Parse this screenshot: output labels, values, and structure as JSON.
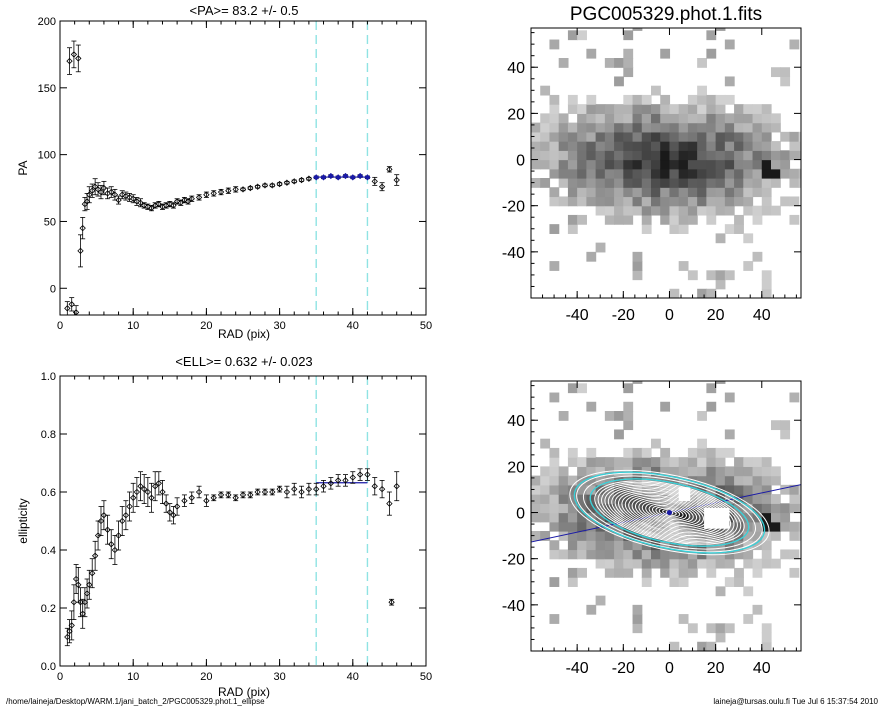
{
  "footer": {
    "path": "/home/laineja/Desktop/WARM.1/jani_batch_2/PGC005329.phot.1_ellipse",
    "stamp": "laineja@tursas.oulu.fi  Tue Jul  6 15:37:54 2010"
  },
  "colors": {
    "axis": "#000000",
    "data": "#000000",
    "fit": "#1a1aa6",
    "window": "#8fe3e3",
    "contour": "#ffffff",
    "contour_fit": "#35d0d8"
  },
  "chart_data": [
    {
      "id": "pa_profile",
      "type": "scatter",
      "title": "<PA>=  83.2 +/-   0.5",
      "xlabel": "RAD (pix)",
      "ylabel": "PA",
      "xlim": [
        0,
        50
      ],
      "ylim": [
        -20,
        200
      ],
      "xticks": [
        0,
        10,
        20,
        30,
        40,
        50
      ],
      "yticks": [
        0,
        50,
        100,
        150,
        200
      ],
      "fit_window": [
        35,
        42
      ],
      "fit_value": 83.2,
      "series": [
        {
          "x": [
            1.0,
            1.3,
            1.6,
            1.9,
            2.2,
            2.5,
            2.8,
            3.1,
            3.4,
            3.7,
            4.0,
            4.4,
            4.8,
            5.2,
            5.6,
            6.0,
            6.5,
            7.0,
            7.5,
            8.0,
            8.5,
            9.0,
            9.5,
            10.0,
            10.5,
            11.0,
            11.5,
            12.0,
            12.5,
            13.0,
            13.5,
            14.0,
            14.5,
            15.0,
            15.5,
            16.0,
            16.5,
            17.0,
            17.5,
            18.0,
            19.0,
            20.0,
            21.0,
            22.0,
            23.0,
            24.0,
            25.0,
            26.0,
            27.0,
            28.0,
            29.0,
            30.0,
            31.0,
            32.0,
            33.0,
            34.0,
            35.0,
            36.0,
            37.0,
            38.0,
            39.0,
            40.0,
            41.0,
            42.0,
            43.0,
            44.0,
            45.0,
            46.0
          ],
          "y": [
            -15,
            170,
            -12,
            175,
            -18,
            172,
            28,
            45,
            63,
            65,
            70,
            73,
            76,
            74,
            72,
            75,
            71,
            72,
            70,
            66,
            70,
            69,
            68,
            67,
            65,
            64,
            62,
            61,
            60,
            62,
            63,
            61,
            62,
            63,
            62,
            65,
            64,
            66,
            65,
            67,
            68,
            70,
            71,
            72,
            73,
            74,
            74,
            75,
            76,
            77,
            77,
            78,
            79,
            80,
            81,
            82,
            83,
            83,
            84,
            83,
            84,
            83,
            84,
            83,
            80,
            76,
            89,
            81
          ],
          "err": [
            5,
            10,
            5,
            10,
            5,
            10,
            12,
            8,
            5,
            6,
            6,
            5,
            6,
            5,
            5,
            5,
            4,
            4,
            4,
            3,
            3,
            3,
            3,
            3,
            3,
            3,
            2,
            2,
            2,
            2,
            2,
            2,
            2,
            2,
            2,
            2,
            2,
            2,
            2,
            2,
            2,
            2,
            2,
            2,
            2,
            2,
            1,
            1,
            1,
            1,
            1,
            1,
            1,
            1,
            1,
            1,
            1,
            1,
            1,
            1,
            1,
            1,
            1,
            1,
            3,
            3,
            2,
            4
          ]
        }
      ]
    },
    {
      "id": "ellipticity_profile",
      "type": "scatter",
      "title": "<ELL>= 0.632 +/-  0.023",
      "xlabel": "RAD (pix)",
      "ylabel": "ellipticity",
      "xlim": [
        0,
        50
      ],
      "ylim": [
        0,
        1
      ],
      "xticks": [
        0,
        10,
        20,
        30,
        40,
        50
      ],
      "yticks": [
        0.0,
        0.2,
        0.4,
        0.6,
        0.8,
        1.0
      ],
      "fit_window": [
        35,
        42
      ],
      "fit_value": 0.632,
      "series": [
        {
          "x": [
            1.0,
            1.3,
            1.6,
            1.9,
            2.2,
            2.5,
            2.8,
            3.1,
            3.4,
            3.7,
            4.0,
            4.4,
            4.8,
            5.2,
            5.6,
            6.0,
            6.5,
            7.0,
            7.5,
            8.0,
            8.5,
            9.0,
            9.5,
            10.0,
            10.5,
            11.0,
            11.5,
            12.0,
            12.5,
            13.0,
            13.5,
            14.0,
            14.5,
            15.0,
            15.5,
            16.0,
            17.0,
            18.0,
            19.0,
            20.0,
            21.0,
            22.0,
            23.0,
            24.0,
            25.0,
            26.0,
            27.0,
            28.0,
            29.0,
            30.0,
            31.0,
            32.0,
            33.0,
            34.0,
            35.0,
            36.0,
            37.0,
            38.0,
            39.0,
            40.0,
            41.0,
            42.0,
            43.0,
            44.0,
            45.0,
            45.3,
            46.0
          ],
          "y": [
            0.1,
            0.12,
            0.14,
            0.22,
            0.3,
            0.28,
            0.22,
            0.18,
            0.22,
            0.25,
            0.28,
            0.32,
            0.38,
            0.45,
            0.5,
            0.52,
            0.47,
            0.42,
            0.4,
            0.45,
            0.5,
            0.52,
            0.55,
            0.58,
            0.6,
            0.62,
            0.61,
            0.6,
            0.58,
            0.62,
            0.63,
            0.6,
            0.56,
            0.53,
            0.52,
            0.55,
            0.57,
            0.58,
            0.6,
            0.57,
            0.58,
            0.59,
            0.59,
            0.58,
            0.59,
            0.59,
            0.6,
            0.6,
            0.6,
            0.61,
            0.6,
            0.61,
            0.6,
            0.61,
            0.61,
            0.62,
            0.63,
            0.64,
            0.64,
            0.65,
            0.66,
            0.66,
            0.62,
            0.61,
            0.56,
            0.22,
            0.62
          ],
          "err": [
            0.03,
            0.04,
            0.05,
            0.06,
            0.05,
            0.06,
            0.05,
            0.05,
            0.05,
            0.05,
            0.05,
            0.05,
            0.05,
            0.05,
            0.05,
            0.05,
            0.05,
            0.05,
            0.05,
            0.05,
            0.05,
            0.05,
            0.05,
            0.05,
            0.05,
            0.05,
            0.05,
            0.05,
            0.05,
            0.05,
            0.04,
            0.04,
            0.03,
            0.03,
            0.03,
            0.03,
            0.02,
            0.02,
            0.02,
            0.02,
            0.01,
            0.01,
            0.01,
            0.01,
            0.01,
            0.01,
            0.01,
            0.01,
            0.01,
            0.01,
            0.02,
            0.02,
            0.02,
            0.02,
            0.02,
            0.02,
            0.02,
            0.02,
            0.02,
            0.02,
            0.02,
            0.02,
            0.03,
            0.03,
            0.04,
            0.01,
            0.05
          ]
        }
      ]
    },
    {
      "id": "galaxy_image",
      "type": "heatmap",
      "title": "PGC005329.phot.1.fits",
      "xlim": [
        -60,
        57
      ],
      "ylim": [
        -60,
        57
      ],
      "xticks": [
        -40,
        -20,
        0,
        20,
        40
      ],
      "yticks": [
        -40,
        -20,
        0,
        20,
        40
      ],
      "pixel_size": 4,
      "galaxy": {
        "center": [
          -2,
          0
        ],
        "pa_deg": 83.2,
        "ell": 0.632,
        "star": [
          43,
          -5
        ]
      }
    },
    {
      "id": "galaxy_image_with_isophotes",
      "type": "heatmap",
      "title": "",
      "xlim": [
        -60,
        57
      ],
      "ylim": [
        -60,
        57
      ],
      "xticks": [
        -40,
        -20,
        0,
        20,
        40
      ],
      "yticks": [
        -40,
        -20,
        0,
        20,
        40
      ],
      "pixel_size": 4,
      "masked_boxes": [
        [
          4,
          5,
          9,
          11
        ],
        [
          15,
          -7,
          26,
          2
        ]
      ],
      "isophote_radii": [
        1.5,
        3,
        4.5,
        6,
        7.5,
        9,
        10.5,
        12,
        13.5,
        15,
        16.5,
        18,
        19.5,
        21,
        22.5,
        24,
        25.5,
        27,
        28.5,
        30,
        31.5,
        33,
        35,
        38,
        41,
        44
      ],
      "fit_isophote_radii": [
        35,
        42
      ]
    }
  ]
}
